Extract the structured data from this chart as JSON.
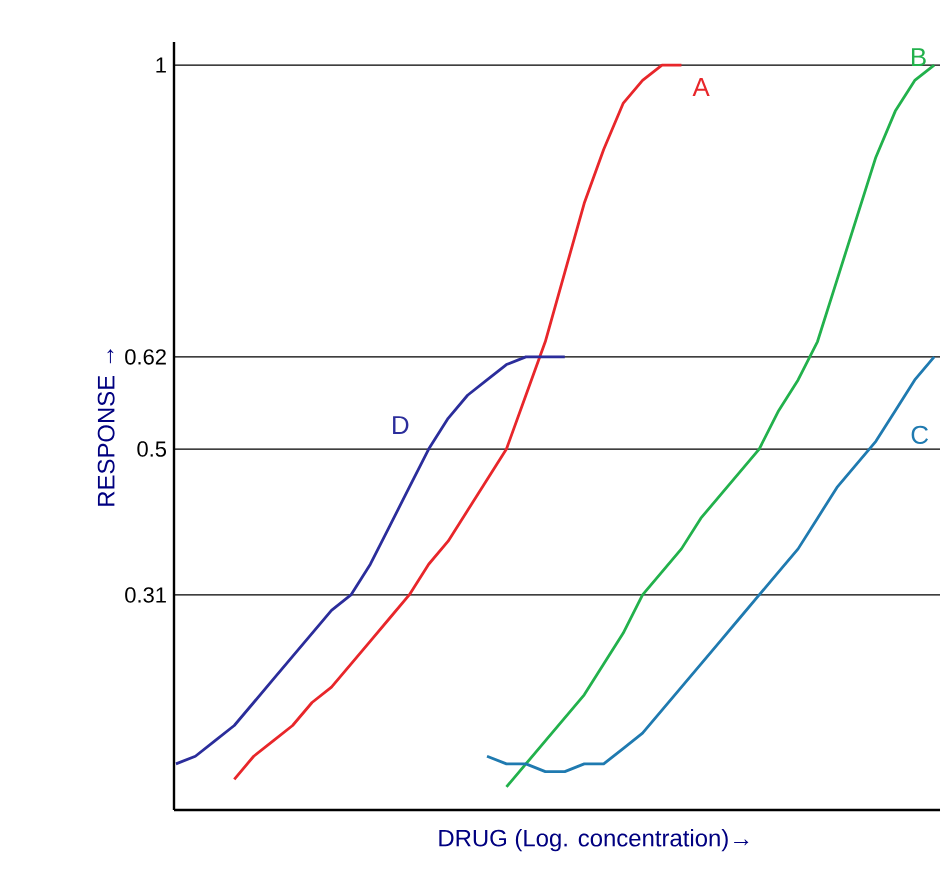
{
  "chart_data": {
    "type": "line",
    "xlabel": "DRUG (Log. concentration)→",
    "ylabel": "RESPONSE →",
    "categories": [
      null,
      null,
      null,
      null,
      null,
      null,
      null,
      null,
      null,
      null,
      null,
      null,
      null,
      null,
      null,
      null,
      null,
      null,
      null,
      null,
      null,
      null,
      null,
      null,
      null,
      null,
      null,
      null,
      null,
      null,
      null,
      null,
      null,
      null,
      null,
      null,
      null,
      null,
      null,
      null
    ],
    "series": [
      {
        "name": "A",
        "color": "#e8262a",
        "values": [
          null,
          null,
          null,
          0.07,
          0.1,
          0.12,
          0.14,
          0.17,
          0.19,
          0.22,
          0.25,
          0.28,
          0.31,
          0.35,
          0.38,
          0.42,
          0.46,
          0.5,
          0.57,
          0.64,
          0.73,
          0.82,
          0.89,
          0.95,
          0.98,
          1.0,
          1.0,
          null,
          null,
          null,
          null,
          null,
          null,
          null,
          null,
          null,
          null,
          null,
          null,
          null
        ]
      },
      {
        "name": "B",
        "color": "#22b14c",
        "values": [
          null,
          null,
          null,
          null,
          null,
          null,
          null,
          null,
          null,
          null,
          null,
          null,
          null,
          null,
          null,
          null,
          null,
          0.06,
          0.09,
          0.12,
          0.15,
          0.18,
          0.22,
          0.26,
          0.31,
          0.34,
          0.37,
          0.41,
          0.44,
          0.47,
          0.5,
          0.55,
          0.59,
          0.64,
          0.72,
          0.8,
          0.88,
          0.94,
          0.98,
          1.0
        ]
      },
      {
        "name": "C",
        "color": "#1f7ab0",
        "values": [
          null,
          null,
          null,
          null,
          null,
          null,
          null,
          null,
          null,
          null,
          null,
          null,
          null,
          null,
          null,
          null,
          0.1,
          0.09,
          0.09,
          0.08,
          0.08,
          0.09,
          0.09,
          0.11,
          0.13,
          0.16,
          0.19,
          0.22,
          0.25,
          0.28,
          0.31,
          0.34,
          0.37,
          0.41,
          0.45,
          0.48,
          0.51,
          0.55,
          0.59,
          0.62
        ]
      },
      {
        "name": "D",
        "color": "#2b2d9b",
        "values": [
          0.09,
          0.1,
          0.12,
          0.14,
          0.17,
          0.2,
          0.23,
          0.26,
          0.29,
          0.31,
          0.35,
          0.4,
          0.45,
          0.5,
          0.54,
          0.57,
          0.59,
          0.61,
          0.62,
          0.62,
          0.62,
          null,
          null,
          null,
          null,
          null,
          null,
          null,
          null,
          null,
          null,
          null,
          null,
          null,
          null,
          null,
          null,
          null,
          null,
          null
        ]
      }
    ],
    "ylim": [
      0.03,
      1.03
    ],
    "yticks": [
      0.31,
      0.5,
      0.62,
      1
    ],
    "grid": "y",
    "tick_labels": "y"
  }
}
